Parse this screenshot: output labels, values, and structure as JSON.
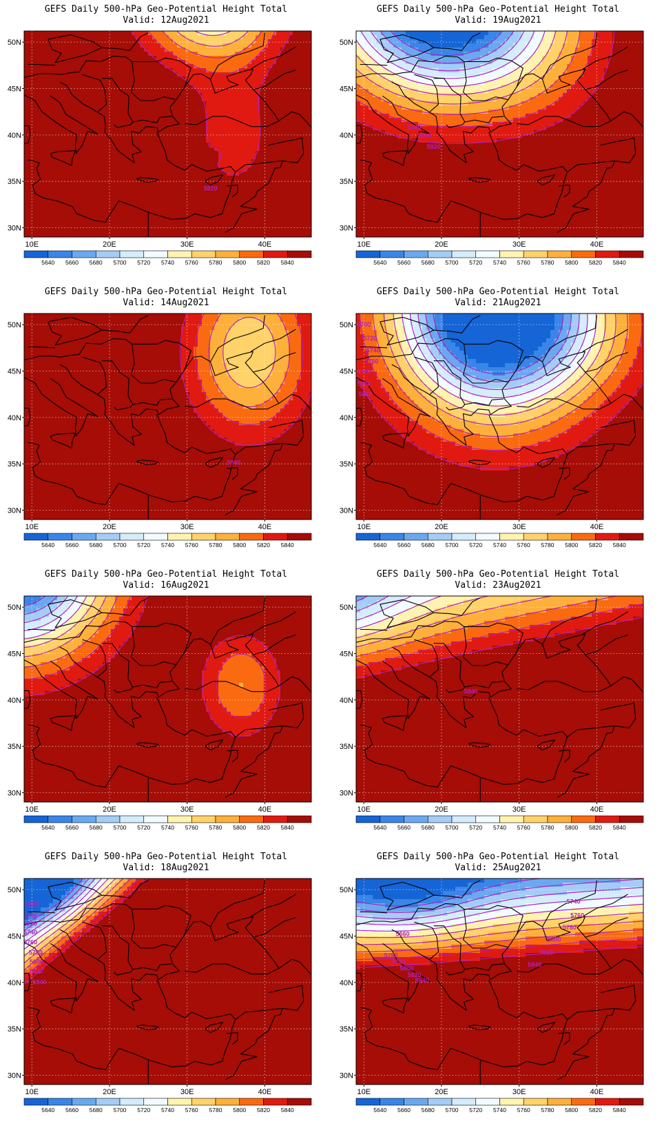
{
  "colors": {
    "c5640": "#1565d6",
    "c5660": "#3a86e8",
    "c5680": "#6aa9ef",
    "c5700": "#a3cdf6",
    "c5720": "#d4ecfb",
    "c5740": "#f2fbff",
    "c5760": "#fff3b0",
    "c5780": "#ffd26a",
    "c5800": "#fdb03a",
    "c5820": "#fa6a10",
    "c5840": "#e01a10",
    "c5860": "#a50d06",
    "contour": "#b020c0",
    "border": "#000000"
  },
  "legend_levels": [
    "5640",
    "5660",
    "5680",
    "5700",
    "5720",
    "5740",
    "5760",
    "5780",
    "5800",
    "5820",
    "5840"
  ],
  "x_ticks": [
    "10E",
    "20E",
    "30E",
    "40E"
  ],
  "y_ticks": [
    "50N",
    "45N",
    "40N",
    "35N",
    "30N"
  ],
  "panels": [
    {
      "id": "p1",
      "line1": "GEFS Daily 500-hPa Geo-Potential Height Total",
      "line2": "Valid:  12Aug2021",
      "labels": [
        {
          "t": "5820",
          "lon": 33.0,
          "lat": 34.0
        }
      ]
    },
    {
      "id": "p2",
      "line1": "GEFS Daily 500-hPa Geo-Potential Height Total",
      "line2": "Valid:  19Aug2021",
      "labels": [
        {
          "t": "5780",
          "lon": 16.5,
          "lat": 40.6
        },
        {
          "t": "5800",
          "lon": 17.8,
          "lat": 39.7
        },
        {
          "t": "5820",
          "lon": 19.0,
          "lat": 38.5
        }
      ]
    },
    {
      "id": "p3",
      "line1": "GEFS Daily 500-hPa Geo-Potential Height Total",
      "line2": "Valid:  14Aug2021",
      "labels": [
        {
          "t": "5840",
          "lon": 36.0,
          "lat": 34.9
        }
      ]
    },
    {
      "id": "p4",
      "line1": "GEFS Daily 500-hPa Geo-Potential Height Total",
      "line2": "Valid:  21Aug2021",
      "labels": [
        {
          "t": "5700",
          "lon": 10.0,
          "lat": 49.8
        },
        {
          "t": "5720",
          "lon": 10.8,
          "lat": 48.3
        },
        {
          "t": "5740",
          "lon": 11.2,
          "lat": 47.0
        },
        {
          "t": "5760",
          "lon": 11.0,
          "lat": 45.8
        },
        {
          "t": "5780",
          "lon": 10.0,
          "lat": 44.7
        },
        {
          "t": "5800",
          "lon": 10.0,
          "lat": 43.4
        },
        {
          "t": "5820",
          "lon": 10.2,
          "lat": 42.3
        }
      ]
    },
    {
      "id": "p5",
      "line1": "GEFS Daily 500-hPa Geo-Potential Height Total",
      "line2": "Valid:  16Aug2021",
      "labels": []
    },
    {
      "id": "p6",
      "line1": "GEFS Daily 500-hPa Geo-Potential Height Total",
      "line2": "Valid:  23Aug2021",
      "labels": [
        {
          "t": "5840",
          "lon": 23.8,
          "lat": 40.7
        }
      ]
    },
    {
      "id": "p7",
      "line1": "GEFS Daily 500-hPa Geo-Potential Height Total",
      "line2": "Valid:  18Aug2021",
      "labels": [
        {
          "t": "5680",
          "lon": 10.0,
          "lat": 48.2
        },
        {
          "t": "5700",
          "lon": 9.8,
          "lat": 47.0
        },
        {
          "t": "5720",
          "lon": 9.8,
          "lat": 46.1
        },
        {
          "t": "5740",
          "lon": 9.8,
          "lat": 45.2
        },
        {
          "t": "5760",
          "lon": 9.8,
          "lat": 44.1
        },
        {
          "t": "5780",
          "lon": 10.5,
          "lat": 43.0
        },
        {
          "t": "5800",
          "lon": 10.6,
          "lat": 42.0
        },
        {
          "t": "5820",
          "lon": 10.6,
          "lat": 41.0
        },
        {
          "t": "5840",
          "lon": 11.0,
          "lat": 39.8
        }
      ]
    },
    {
      "id": "p8",
      "line1": "GEFS Daily 500-hPa Geo-Potential Height Total",
      "line2": "Valid:  25Aug2021",
      "labels": [
        {
          "t": "5740",
          "lon": 37.0,
          "lat": 48.5
        },
        {
          "t": "5760",
          "lon": 37.5,
          "lat": 47.0
        },
        {
          "t": "5780",
          "lon": 36.5,
          "lat": 45.7
        },
        {
          "t": "5800",
          "lon": 34.5,
          "lat": 44.4
        },
        {
          "t": "5820",
          "lon": 33.5,
          "lat": 43.0
        },
        {
          "t": "5840",
          "lon": 32.0,
          "lat": 41.7
        },
        {
          "t": "5660",
          "lon": 15.0,
          "lat": 45.0
        },
        {
          "t": "5760",
          "lon": 13.5,
          "lat": 42.7
        },
        {
          "t": "5780",
          "lon": 14.5,
          "lat": 42.0
        },
        {
          "t": "5800",
          "lon": 15.5,
          "lat": 41.3
        },
        {
          "t": "5820",
          "lon": 16.5,
          "lat": 40.6
        },
        {
          "t": "5840",
          "lon": 17.5,
          "lat": 40.0
        }
      ]
    }
  ]
}
